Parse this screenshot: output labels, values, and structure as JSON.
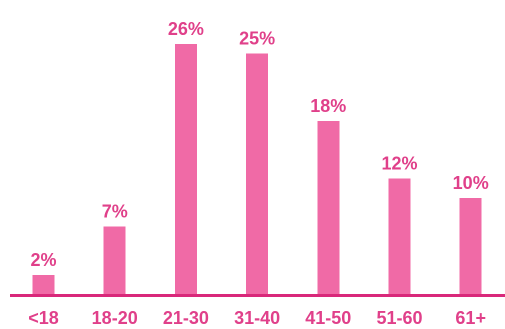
{
  "chart_data": {
    "type": "bar",
    "title": "",
    "xlabel": "",
    "ylabel": "",
    "categories": [
      "<18",
      "18-20",
      "21-30",
      "31-40",
      "41-50",
      "51-60",
      "61+"
    ],
    "values": [
      2,
      7,
      26,
      25,
      18,
      12,
      10
    ],
    "data_labels": [
      "2%",
      "7%",
      "26%",
      "25%",
      "18%",
      "12%",
      "10%"
    ],
    "ylim": [
      0,
      26
    ],
    "grid": false,
    "legend": "none",
    "colors": {
      "bar": "#f06aa6",
      "label": "#e0408a",
      "axis": "#d9287a"
    }
  }
}
